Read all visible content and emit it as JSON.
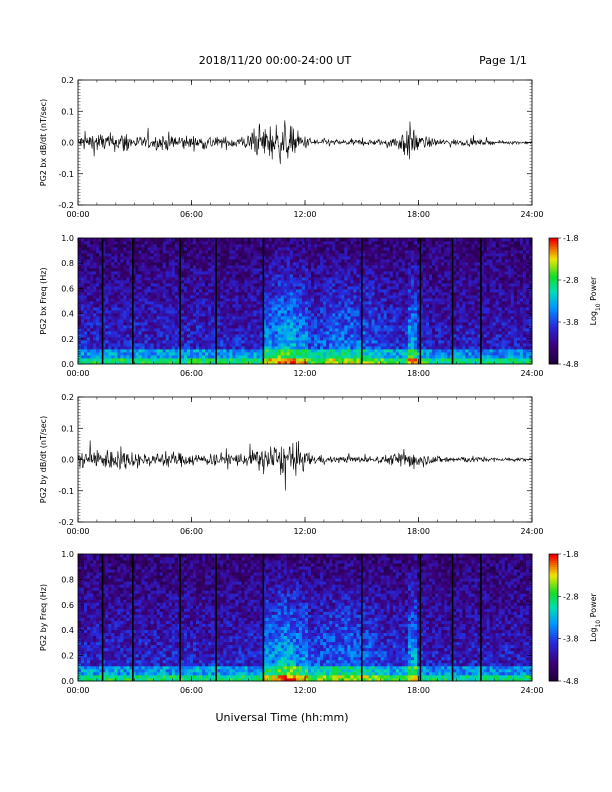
{
  "header": {
    "title": "2018/11/20  00:00-24:00 UT",
    "page": "Page 1/1"
  },
  "footer": {
    "xlabel": "Universal Time (hh:mm)"
  },
  "chart_data": [
    {
      "type": "line",
      "ylabel": "PG2 bx dB/dt (nT/sec)",
      "ylim": [
        -0.2,
        0.2
      ],
      "yticks": [
        "-0.2",
        "-0.1",
        "0.0",
        "0.1",
        "0.2"
      ],
      "xticks": [
        "00:00",
        "06:00",
        "12:00",
        "18:00",
        "24:00"
      ],
      "xlim_hours": [
        0,
        24
      ],
      "envelope": {
        "hours": [
          0,
          0.5,
          1,
          1.5,
          2,
          2.5,
          3,
          3.5,
          4,
          4.5,
          5,
          5.5,
          6,
          6.5,
          7,
          7.5,
          8,
          8.5,
          9,
          9.5,
          10,
          10.5,
          11,
          11.5,
          12,
          12.5,
          13,
          13.5,
          14,
          14.5,
          15,
          15.5,
          16,
          16.5,
          17,
          17.5,
          18,
          18.5,
          19,
          19.5,
          20,
          20.5,
          21,
          21.5,
          22,
          22.5,
          23,
          23.5,
          24
        ],
        "amplitude": [
          0.02,
          0.03,
          0.035,
          0.03,
          0.025,
          0.04,
          0.02,
          0.02,
          0.02,
          0.025,
          0.03,
          0.025,
          0.02,
          0.02,
          0.025,
          0.015,
          0.02,
          0.02,
          0.025,
          0.045,
          0.055,
          0.06,
          0.06,
          0.04,
          0.02,
          0.015,
          0.012,
          0.01,
          0.01,
          0.01,
          0.01,
          0.01,
          0.01,
          0.015,
          0.03,
          0.06,
          0.03,
          0.015,
          0.012,
          0.012,
          0.01,
          0.01,
          0.01,
          0.008,
          0.006,
          0.005,
          0.005,
          0.005,
          0.005
        ]
      }
    },
    {
      "type": "heatmap",
      "ylabel": "PG2 bx Freq (Hz)",
      "ylim": [
        0.0,
        1.0
      ],
      "yticks": [
        "0.0",
        "0.2",
        "0.4",
        "0.6",
        "0.8",
        "1.0"
      ],
      "xticks": [
        "00:00",
        "06:00",
        "12:00",
        "18:00",
        "24:00"
      ],
      "colorbar": {
        "label": "Log10 Power",
        "ticks": [
          "-1.8",
          "-2.8",
          "-3.8",
          "-4.8"
        ],
        "range": [
          -4.8,
          -1.8
        ]
      },
      "gap_hours": [
        1.3,
        2.9,
        5.4,
        7.3,
        9.8,
        15.0,
        18.1,
        19.8,
        21.3
      ]
    },
    {
      "type": "line",
      "ylabel": "PG2 by dB/dt (nT/sec)",
      "ylim": [
        -0.2,
        0.2
      ],
      "yticks": [
        "-0.2",
        "-0.1",
        "0.0",
        "0.1",
        "0.2"
      ],
      "xticks": [
        "00:00",
        "06:00",
        "12:00",
        "18:00",
        "24:00"
      ],
      "xlim_hours": [
        0,
        24
      ],
      "envelope": {
        "hours": [
          0,
          0.5,
          1,
          1.5,
          2,
          2.5,
          3,
          3.5,
          4,
          4.5,
          5,
          5.5,
          6,
          6.5,
          7,
          7.5,
          8,
          8.5,
          9,
          9.5,
          10,
          10.5,
          11,
          11.5,
          12,
          12.5,
          13,
          13.5,
          14,
          14.5,
          15,
          15.5,
          16,
          16.5,
          17,
          17.5,
          18,
          18.5,
          19,
          19.5,
          20,
          20.5,
          21,
          21.5,
          22,
          22.5,
          23,
          23.5,
          24
        ],
        "amplitude": [
          0.025,
          0.03,
          0.03,
          0.035,
          0.035,
          0.03,
          0.025,
          0.02,
          0.02,
          0.025,
          0.025,
          0.02,
          0.02,
          0.02,
          0.02,
          0.02,
          0.025,
          0.02,
          0.025,
          0.035,
          0.045,
          0.05,
          0.045,
          0.05,
          0.03,
          0.015,
          0.012,
          0.01,
          0.01,
          0.01,
          0.01,
          0.01,
          0.012,
          0.015,
          0.025,
          0.04,
          0.025,
          0.015,
          0.012,
          0.012,
          0.01,
          0.01,
          0.01,
          0.008,
          0.006,
          0.006,
          0.005,
          0.005,
          0.005
        ]
      }
    },
    {
      "type": "heatmap",
      "ylabel": "PG2 by Freq (Hz)",
      "ylim": [
        0.0,
        1.0
      ],
      "yticks": [
        "0.0",
        "0.2",
        "0.4",
        "0.6",
        "0.8",
        "1.0"
      ],
      "xticks": [
        "00:00",
        "06:00",
        "12:00",
        "18:00",
        "24:00"
      ],
      "colorbar": {
        "label": "Log10 Power",
        "ticks": [
          "-1.8",
          "-2.8",
          "-3.8",
          "-4.8"
        ],
        "range": [
          -4.8,
          -1.8
        ]
      },
      "gap_hours": [
        1.3,
        2.9,
        5.4,
        7.3,
        9.8,
        15.0,
        18.1,
        19.8,
        21.3
      ]
    }
  ]
}
